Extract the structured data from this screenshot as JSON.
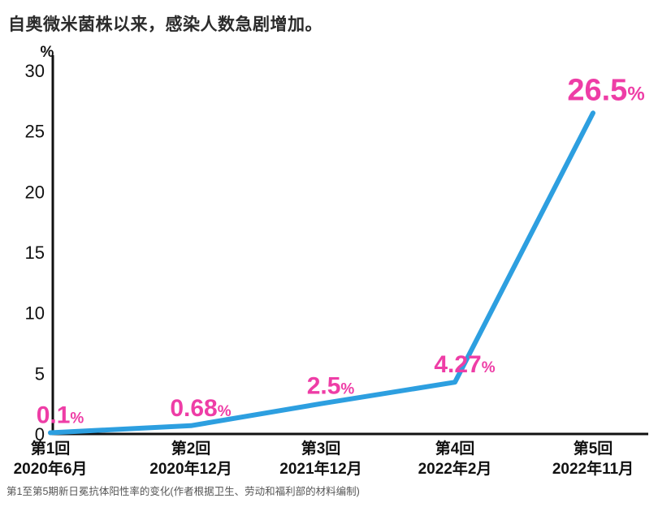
{
  "header": {
    "title": "自奥微米菌株以来，感染人数急剧增加。"
  },
  "footer": {
    "caption": "第1至第5期新日冕抗体阳性率的变化(作者根据卫生、劳动和福利部的材料编制)"
  },
  "chart_data": {
    "type": "line",
    "title": "自奥微米菌株以来，感染人数急剧增加。",
    "unit_label": "%",
    "categories": [
      {
        "label": "第1回",
        "sublabel": "2020年6月"
      },
      {
        "label": "第2回",
        "sublabel": "2020年12月"
      },
      {
        "label": "第3回",
        "sublabel": "2021年12月"
      },
      {
        "label": "第4回",
        "sublabel": "2022年2月"
      },
      {
        "label": "第5回",
        "sublabel": "2022年11月"
      }
    ],
    "values": [
      0.1,
      0.68,
      2.5,
      4.27,
      26.5
    ],
    "value_labels": [
      "0.1",
      "0.68",
      "2.5",
      "4.27",
      "26.5"
    ],
    "value_suffix": "%",
    "ylim": [
      0,
      30
    ],
    "yticks": [
      0,
      5,
      10,
      15,
      20,
      25,
      30
    ],
    "grid": false,
    "legend": "none",
    "colors": {
      "line": "#2d9fe0",
      "value_label": "#ee3da6",
      "axis": "#111111",
      "tick_text": "#111111"
    }
  }
}
